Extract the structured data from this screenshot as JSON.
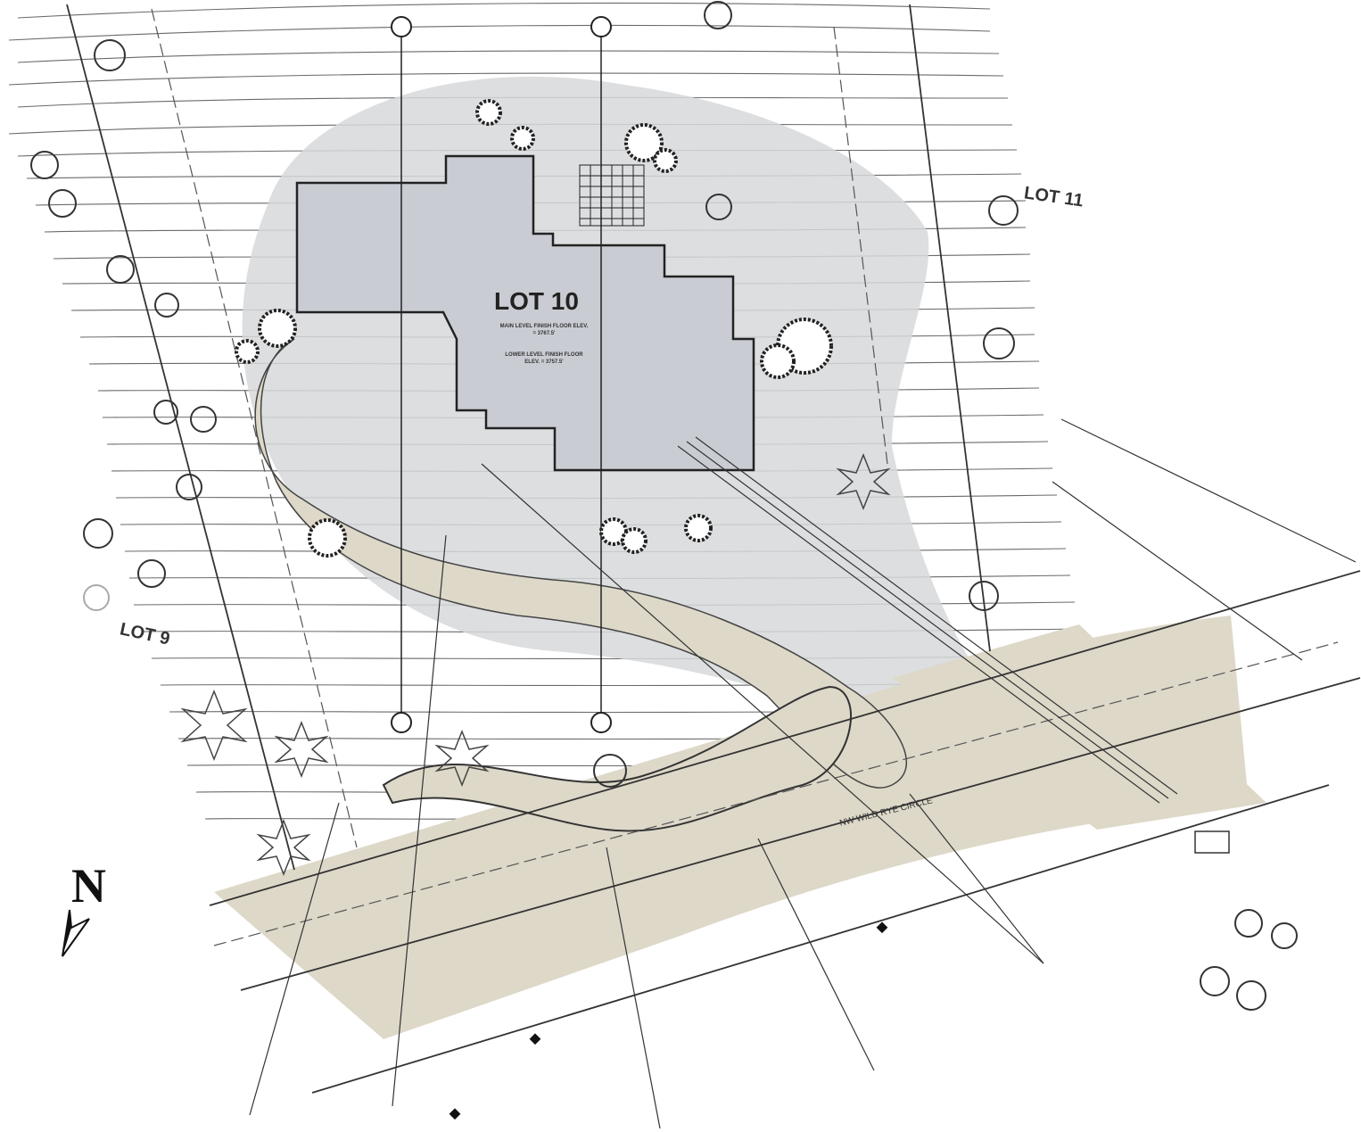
{
  "plan": {
    "lot_main": "LOT 10",
    "lot_left": "LOT 9",
    "lot_right": "LOT 11",
    "floor_note_1": "MAIN LEVEL FINISH FLOOR ELEV. = 3767.5'",
    "floor_note_2": "LOWER LEVEL FINISH FLOOR ELEV. = 3757.5'",
    "road_name": "NW WILD RYE CIRCLE",
    "north_label": "N"
  },
  "colors": {
    "building": "#c9ccd3",
    "disturbed_area": "#d6d8db",
    "paving": "#ddd8c8",
    "contour": "#555555",
    "lot_line": "#333333"
  }
}
